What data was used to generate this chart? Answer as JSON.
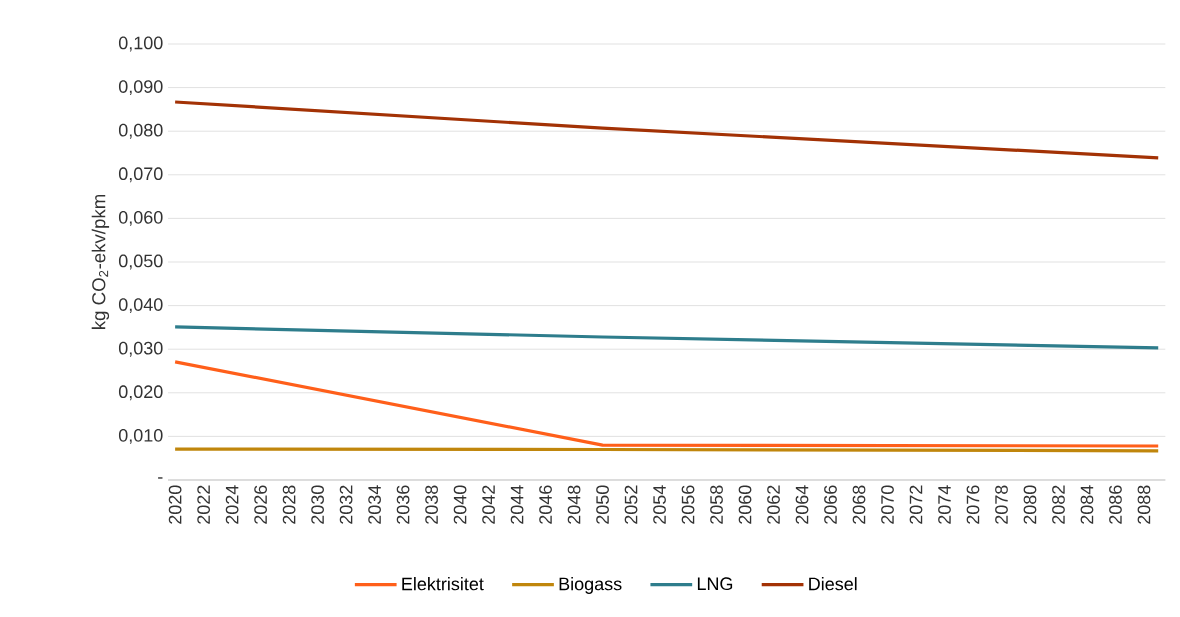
{
  "chart_data": {
    "type": "line",
    "ylabel": "kg CO$_{2}$-ekv/pkm",
    "x": [
      2020,
      2050,
      2089
    ],
    "series": [
      {
        "name": "Elektrisitet",
        "color": "#ff5f1a",
        "values": [
          0.0271,
          0.008,
          0.0078
        ]
      },
      {
        "name": "Biogass",
        "color": "#c0860c",
        "values": [
          0.0071,
          0.007,
          0.0067
        ]
      },
      {
        "name": "LNG",
        "color": "#2e7d8c",
        "values": [
          0.0351,
          0.0328,
          0.0303
        ]
      },
      {
        "name": "Diesel",
        "color": "#a33205",
        "values": [
          0.0867,
          0.0807,
          0.0739
        ]
      }
    ],
    "xlim": [
      2019.5,
      2089.5
    ],
    "xticks": [
      2020,
      2022,
      2024,
      2026,
      2028,
      2030,
      2032,
      2034,
      2036,
      2038,
      2040,
      2042,
      2044,
      2046,
      2048,
      2050,
      2052,
      2054,
      2056,
      2058,
      2060,
      2062,
      2064,
      2066,
      2068,
      2070,
      2072,
      2074,
      2076,
      2078,
      2080,
      2082,
      2084,
      2086,
      2088
    ],
    "ylim": [
      0,
      0.1
    ],
    "yticks": [
      {
        "value": 0,
        "label": "-"
      },
      {
        "value": 0.01,
        "label": "0,010"
      },
      {
        "value": 0.02,
        "label": "0,020"
      },
      {
        "value": 0.03,
        "label": "0,030"
      },
      {
        "value": 0.04,
        "label": "0,040"
      },
      {
        "value": 0.05,
        "label": "0,050"
      },
      {
        "value": 0.06,
        "label": "0,060"
      },
      {
        "value": 0.07,
        "label": "0,070"
      },
      {
        "value": 0.08,
        "label": "0,080"
      },
      {
        "value": 0.09,
        "label": "0,090"
      },
      {
        "value": 0.1,
        "label": "0,100"
      }
    ],
    "grid": "y",
    "legend": "bottom",
    "marker": "none",
    "line_style": "solid"
  }
}
